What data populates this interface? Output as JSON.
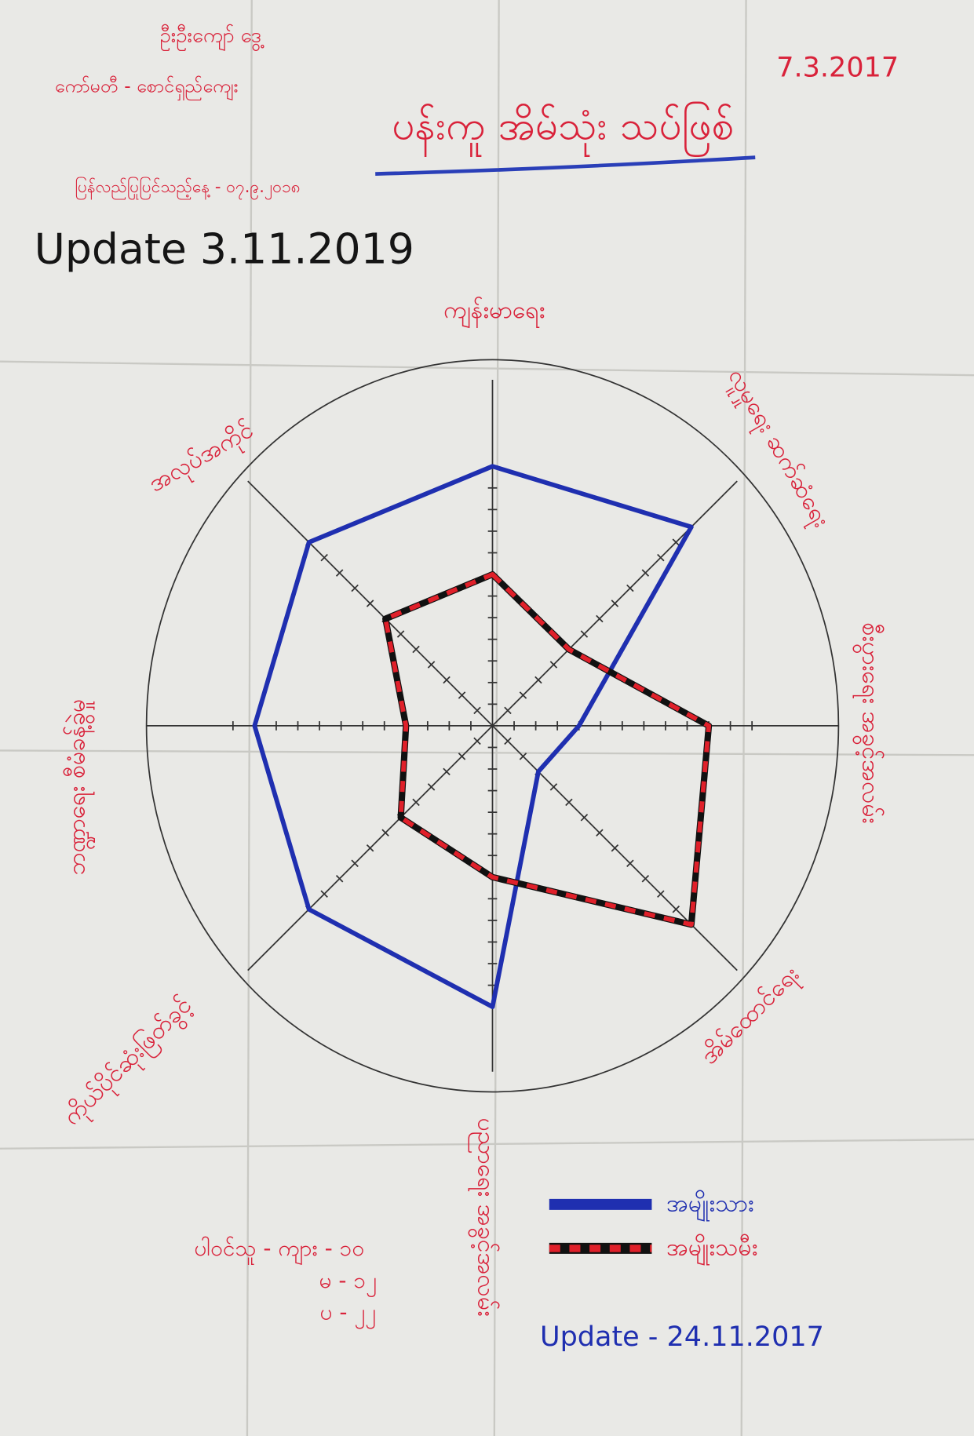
{
  "chart_data": {
    "type": "radar",
    "title": "ပန်းကူ အိမ်သုံး သပ်ဖြစ်",
    "annotations": [
      "ဦးဦးကျော် ဒွေ့",
      "ကော်မတီ - စောင်ရှည်ကျေး",
      "7.3.2017",
      "ပြန်လည်ပြုပြင်သည့်နေ့ - ၀၇.၉.၂၀၁၈",
      "Update 3.11.2019",
      "ပါဝင်သူ - ကျား - ၁၀",
      "မ - ၁၂",
      "ပ - ၂၂",
      "Update - 24.11.2017"
    ],
    "axes": [
      "ကျန်းမာရေး",
      "လူမှုရေး ဆက်ဆံရေး",
      "စီးပွားရေး အခွင့်အလမ်း",
      "အိမ်ထောင်ရေး",
      "ပညာရေး အခွင့်အလမ်း",
      "ကိုယ်ပိုင်ဆုံးဖြတ်ခွင့်",
      "ဘဏ္ဍာရေး စီမံခန့်ခွဲမှု",
      "အလုပ်အကိုင်"
    ],
    "series": [
      {
        "name": "အမျိုးသား",
        "color": "#1f2fb0",
        "line_style": "solid",
        "values": [
          12,
          13,
          4,
          3,
          13,
          12,
          11,
          12
        ]
      },
      {
        "name": "အမျိုးသမီး",
        "color": "#e0202a",
        "line_style": "dashed",
        "values": [
          7,
          5,
          10,
          13,
          7,
          6,
          4,
          7
        ]
      }
    ],
    "rlim": [
      0,
      16
    ],
    "rticks": [
      1,
      2,
      3,
      4,
      5,
      6,
      7,
      8,
      9,
      10,
      11,
      12
    ],
    "grid": true
  }
}
